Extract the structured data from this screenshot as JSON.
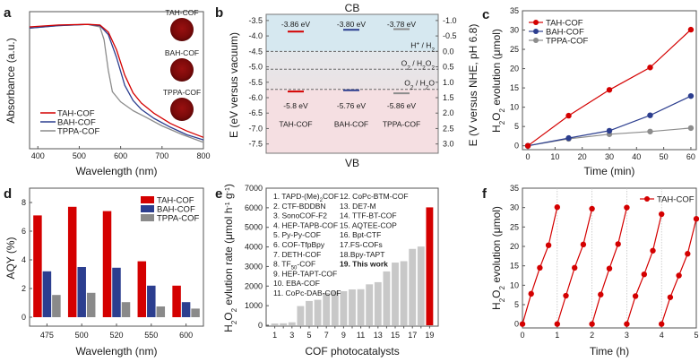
{
  "figure": {
    "panels": [
      "a",
      "b",
      "c",
      "d",
      "e",
      "f"
    ]
  },
  "colors": {
    "tah": "#d40000",
    "bah": "#2c3e8f",
    "tppa": "#8c8c8c",
    "tppa_bar": "#8a8a8a",
    "e_bar": "#c8c8c8",
    "e_highlight": "#d40000",
    "cb_region": "#d6e8f0",
    "mid_region": "#e6e6e6",
    "vb_region": "#f5dfe2"
  },
  "chart_data": [
    {
      "panel": "a",
      "type": "line",
      "title": "",
      "xlabel": "Wavelength (nm)",
      "ylabel": "Absorbance (a.u.)",
      "xlim": [
        380,
        800
      ],
      "xticks": [
        "400",
        "500",
        "600",
        "700",
        "800"
      ],
      "legend": "bottom-left",
      "inset_labels": [
        "TAH-COF",
        "BAH-COF",
        "TPPA-COF"
      ],
      "series": [
        {
          "name": "TAH-COF",
          "x": [
            380,
            450,
            520,
            550,
            570,
            590,
            610,
            630,
            650,
            680,
            720,
            760,
            800
          ],
          "y": [
            0.96,
            0.975,
            0.98,
            0.975,
            0.92,
            0.78,
            0.58,
            0.44,
            0.36,
            0.28,
            0.2,
            0.14,
            0.09
          ]
        },
        {
          "name": "BAH-COF",
          "x": [
            380,
            450,
            520,
            550,
            570,
            590,
            610,
            630,
            650,
            680,
            720,
            760,
            800
          ],
          "y": [
            0.95,
            0.97,
            0.98,
            0.97,
            0.9,
            0.72,
            0.5,
            0.38,
            0.31,
            0.24,
            0.17,
            0.11,
            0.07
          ]
        },
        {
          "name": "TPPA-COF",
          "x": [
            380,
            450,
            520,
            550,
            560,
            570,
            580,
            600,
            630,
            660,
            700,
            750,
            800
          ],
          "y": [
            0.95,
            0.97,
            0.98,
            0.96,
            0.86,
            0.62,
            0.45,
            0.37,
            0.3,
            0.25,
            0.18,
            0.11,
            0.05
          ]
        }
      ]
    },
    {
      "panel": "b",
      "type": "band-diagram",
      "title": "",
      "top_label": "CB",
      "bottom_label": "VB",
      "ylabel_left": "E (eV versus vacuum)",
      "ylabel_right": "E (V versus NHE, pH 6.8)",
      "ylim_left": [
        -7.8,
        -3.3
      ],
      "yticks_left": [
        "-3.5",
        "-4.0",
        "-4.5",
        "-5.0",
        "-5.5",
        "-6.0",
        "-6.5",
        "-7.0",
        "-7.5"
      ],
      "yticks_right": [
        "-1.0",
        "-0.5",
        "0.0",
        "0.5",
        "1.0",
        "1.5",
        "2.0",
        "2.5",
        "3.0"
      ],
      "materials": [
        {
          "name": "TAH-COF",
          "cb": -3.86,
          "vb": -5.8,
          "cb_label": "-3.86 eV",
          "vb_label": "-5.8 eV"
        },
        {
          "name": "BAH-COF",
          "cb": -3.8,
          "vb": -5.76,
          "cb_label": "-3.80 eV",
          "vb_label": "-5.76 eV"
        },
        {
          "name": "TPPA-COF",
          "cb": -3.78,
          "vb": -5.86,
          "cb_label": "-3.78 eV",
          "vb_label": "-5.86 eV"
        }
      ],
      "reference_levels": [
        {
          "label_main": "H",
          "label_sup": "+",
          "label_rest": " / H",
          "label_sub": "2",
          "value": -4.5
        },
        {
          "label_main": "O",
          "label_sub": "2",
          "label_rest": " / H",
          "label_sub2": "2",
          "label_rest2": "O",
          "label_sub3": "2",
          "value": -5.08
        },
        {
          "label_main": "O",
          "label_sub": "2",
          "label_rest": " / H",
          "label_sub2": "2",
          "label_rest2": "O",
          "value": -5.73
        }
      ]
    },
    {
      "panel": "c",
      "type": "line",
      "title": "",
      "xlabel": "Time (min)",
      "ylabel": "H2O2 evolution (μmol)",
      "xlim": [
        -2,
        62
      ],
      "ylim": [
        -1,
        35
      ],
      "xticks": [
        "0",
        "10",
        "20",
        "30",
        "40",
        "50",
        "60"
      ],
      "yticks": [
        "0",
        "5",
        "10",
        "15",
        "20",
        "25",
        "30",
        "35"
      ],
      "legend": "top-left",
      "x": [
        0,
        15,
        30,
        45,
        60
      ],
      "series": [
        {
          "name": "TAH-COF",
          "values": [
            0,
            7.8,
            14.5,
            20.3,
            30.1
          ]
        },
        {
          "name": "BAH-COF",
          "values": [
            0,
            2.0,
            3.9,
            7.9,
            12.9
          ]
        },
        {
          "name": "TPPA-COF",
          "values": [
            0,
            1.8,
            3.0,
            3.7,
            4.6
          ]
        }
      ]
    },
    {
      "panel": "d",
      "type": "bar",
      "title": "",
      "xlabel": "Wavelength (nm)",
      "ylabel": "AQY (%)",
      "ylim": [
        0,
        9
      ],
      "yticks": [
        "0",
        "2",
        "4",
        "6",
        "8"
      ],
      "categories": [
        "475",
        "500",
        "520",
        "550",
        "600"
      ],
      "legend": "top-right",
      "series": [
        {
          "name": "TAH-COF",
          "values": [
            7.1,
            7.7,
            7.4,
            3.9,
            2.2
          ]
        },
        {
          "name": "BAH-COF",
          "values": [
            3.2,
            3.5,
            3.45,
            2.2,
            1.05
          ]
        },
        {
          "name": "TPPA-COF",
          "values": [
            1.55,
            1.7,
            1.05,
            0.75,
            0.6
          ]
        }
      ]
    },
    {
      "panel": "e",
      "type": "bar",
      "title": "",
      "xlabel": "COF  photocatalysts",
      "ylabel": "H2O2 evlution rate (μmol h-1 g-1)",
      "ylim": [
        0,
        7000
      ],
      "yticks": [
        "0",
        "1000",
        "2000",
        "3000",
        "4000",
        "5000",
        "6000",
        "7000"
      ],
      "xticks": [
        "1",
        "3",
        "5",
        "7",
        "9",
        "11",
        "13",
        "15",
        "17",
        "19"
      ],
      "categories": [
        "1",
        "2",
        "3",
        "4",
        "5",
        "6",
        "7",
        "8",
        "9",
        "10",
        "11",
        "12",
        "13",
        "14",
        "15",
        "16",
        "17",
        "18",
        "19"
      ],
      "values": [
        90,
        100,
        150,
        980,
        1240,
        1300,
        1650,
        1730,
        1740,
        1830,
        1840,
        2090,
        2200,
        2750,
        3200,
        3270,
        3900,
        4020,
        6020
      ],
      "highlight_index": 18,
      "legend_list_col1": [
        "1. TAPD-(Me)",
        "2. CTF-BDDBN",
        "3. SonoCOF-F2",
        "4. HEP-TAPB-COF",
        "5. Py-Py-COF",
        "6. COF-TfpBpy",
        "7. DETH-COF",
        "8. TF",
        "9. HEP-TAPT-COF",
        "10. EBA-COF",
        "11. CoPc-DAB-COF"
      ],
      "legend_list_col1_sub": {
        "0": "2",
        "7": "50"
      },
      "legend_list_col1_suffix": {
        "0": "COF",
        "7": "-COF"
      },
      "legend_list_col2": [
        "12. CoPc-BTM-COF",
        "13. DE7-M",
        "14. TTF-BT-COF",
        "15. AQTEE-COP",
        "16. Bpt-CTF",
        "17.FS-COFs",
        "18.Bpy-TAPT",
        "19. This work"
      ]
    },
    {
      "panel": "f",
      "type": "line",
      "title": "",
      "xlabel": "Time (h)",
      "ylabel": "H2O2 evolution (μmol)",
      "xlim": [
        0,
        5
      ],
      "ylim": [
        -1,
        35
      ],
      "xticks": [
        "0",
        "1",
        "2",
        "3",
        "4",
        "5"
      ],
      "yticks": [
        "0",
        "5",
        "10",
        "15",
        "20",
        "25",
        "30",
        "35"
      ],
      "legend": "top-right",
      "series": [
        {
          "name": "TAH-COF",
          "cycles": [
            {
              "x": [
                0,
                0.25,
                0.5,
                0.75,
                1.0
              ],
              "y": [
                0,
                7.8,
                14.5,
                20.3,
                30.1
              ]
            },
            {
              "x": [
                1.0,
                1.25,
                1.5,
                1.75,
                2.0
              ],
              "y": [
                0,
                7.3,
                14.5,
                20.5,
                29.7
              ]
            },
            {
              "x": [
                2.0,
                2.25,
                2.5,
                2.75,
                3.0
              ],
              "y": [
                0,
                7.6,
                14.3,
                20.6,
                30.0
              ]
            },
            {
              "x": [
                3.0,
                3.25,
                3.5,
                3.75,
                4.0
              ],
              "y": [
                0,
                7.2,
                12.8,
                18.9,
                28.3
              ]
            },
            {
              "x": [
                4.0,
                4.25,
                4.5,
                4.75,
                5.0
              ],
              "y": [
                0,
                6.9,
                12.5,
                18.1,
                27.1
              ]
            }
          ]
        }
      ]
    }
  ]
}
